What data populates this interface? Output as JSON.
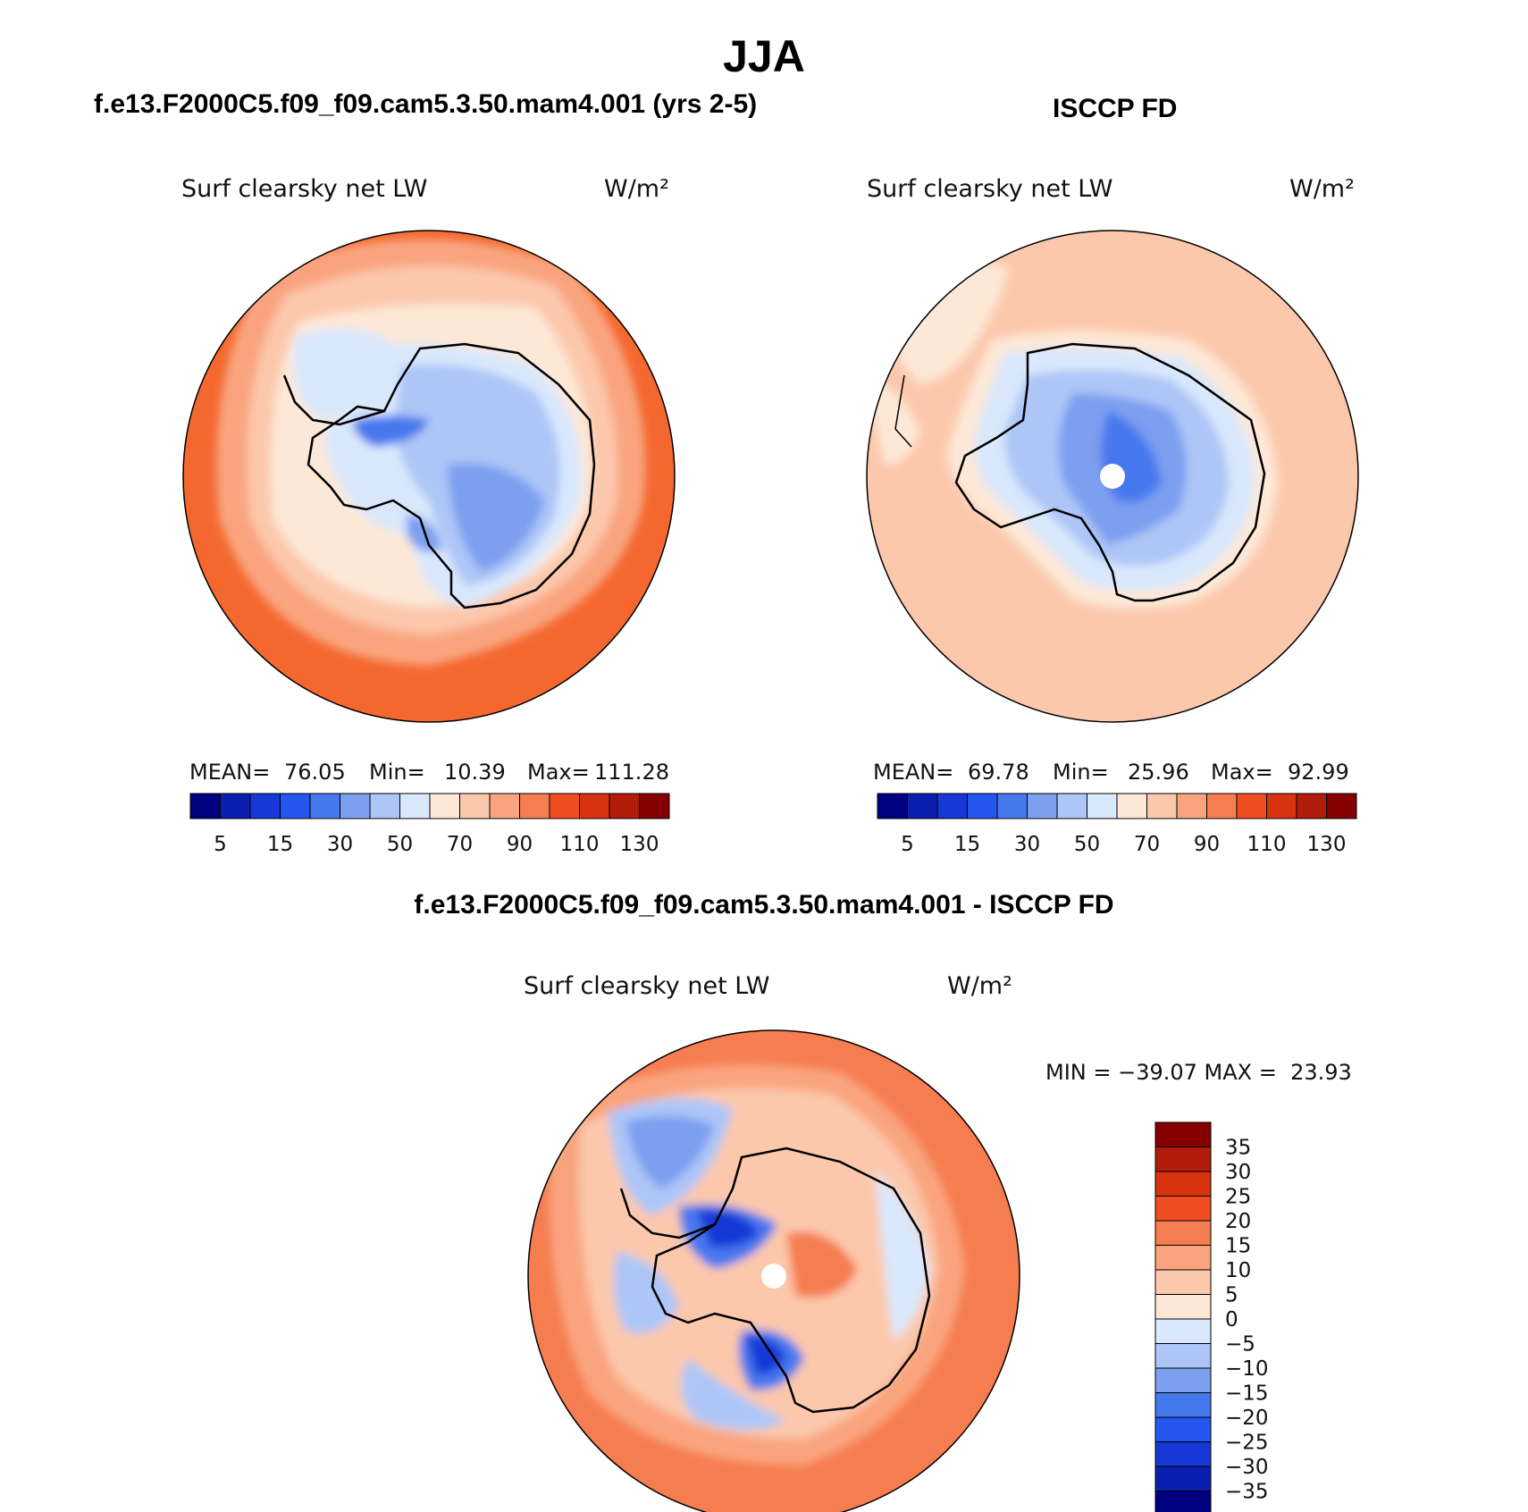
{
  "title": "JJA",
  "panels": [
    {
      "heading": "f.e13.F2000C5.f09_f09.cam5.3.50.mam4.001 (yrs 2-5)",
      "variable": "Surf clearsky net LW",
      "units": "W/m²",
      "stats": {
        "mean_label": "MEAN=",
        "mean": "76.05",
        "min_label": "Min=",
        "min": "10.39",
        "max_label": "Max=",
        "max": "111.28"
      }
    },
    {
      "heading": "ISCCP FD",
      "variable": "Surf clearsky net LW",
      "units": "W/m²",
      "stats": {
        "mean_label": "MEAN=",
        "mean": "69.78",
        "min_label": "Min=",
        "min": "25.96",
        "max_label": "Max=",
        "max": "92.99"
      }
    },
    {
      "heading": "f.e13.F2000C5.f09_f09.cam5.3.50.mam4.001 - ISCCP FD",
      "variable": "Surf clearsky net LW",
      "units": "W/m²",
      "stats_line": "MIN = −39.07 MAX =  23.93"
    }
  ],
  "abs_colorbar": {
    "colors": [
      "#000080",
      "#0a1fb0",
      "#1538d6",
      "#2456f0",
      "#4678ee",
      "#7d9ff0",
      "#adc6f7",
      "#d9e8fc",
      "#fde8d7",
      "#fcc8ac",
      "#f9a47f",
      "#f67d50",
      "#f04e22",
      "#d8330f",
      "#b21d0b",
      "#850000"
    ],
    "tick_labels": [
      "5",
      "15",
      "30",
      "50",
      "70",
      "90",
      "110",
      "130"
    ]
  },
  "diff_colorbar": {
    "colors": [
      "#000080",
      "#0a1fb0",
      "#1538d6",
      "#2456f0",
      "#4678ee",
      "#7d9ff0",
      "#adc6f7",
      "#d9e8fc",
      "#fde8d7",
      "#fcc8ac",
      "#f9a47f",
      "#f67d50",
      "#f04e22",
      "#d8330f",
      "#b21d0b",
      "#850000"
    ],
    "tick_labels": [
      "35",
      "30",
      "25",
      "20",
      "15",
      "10",
      "5",
      "0",
      "−5",
      "−10",
      "−15",
      "−20",
      "−25",
      "−30",
      "−35"
    ]
  }
}
